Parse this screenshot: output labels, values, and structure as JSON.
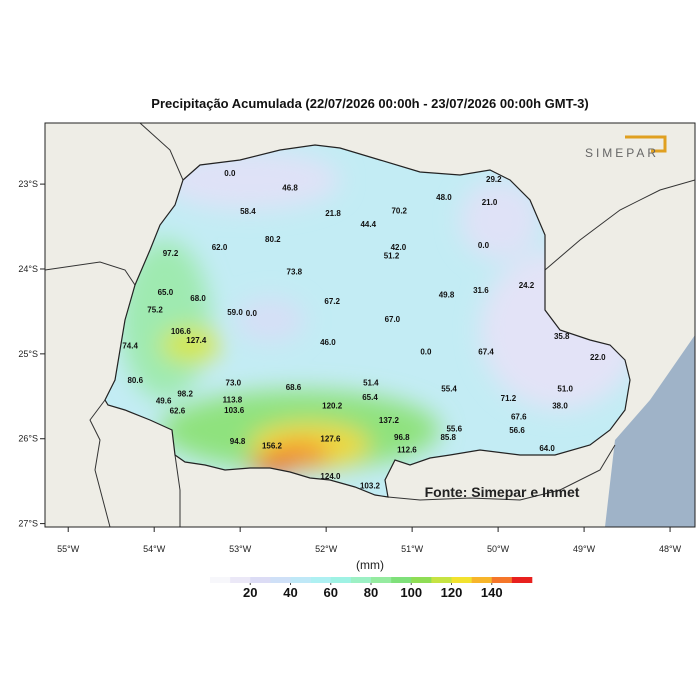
{
  "map": {
    "title": "Precipitação Acumulada (22/07/2026 00:00h - 23/07/2026 00:00h GMT-3)",
    "logo": "SIMEPAR",
    "source": "Fonte: Simepar e Inmet",
    "xlim": [
      -55.27,
      -47.71
    ],
    "ylim": [
      -27.04,
      -22.28
    ],
    "xticks": [
      {
        "value": -55,
        "label": "55°W"
      },
      {
        "value": -54,
        "label": "54°W"
      },
      {
        "value": -53,
        "label": "53°W"
      },
      {
        "value": -52,
        "label": "52°W"
      },
      {
        "value": -51,
        "label": "51°W"
      },
      {
        "value": -50,
        "label": "50°W"
      },
      {
        "value": -49,
        "label": "49°W"
      },
      {
        "value": -48,
        "label": "48°W"
      }
    ],
    "yticks": [
      {
        "value": -23,
        "label": "23°S"
      },
      {
        "value": -24,
        "label": "24°S"
      },
      {
        "value": -25,
        "label": "25°S"
      },
      {
        "value": -26,
        "label": "26°S"
      },
      {
        "value": -27,
        "label": "27°S"
      }
    ],
    "stations": [
      {
        "lon": -53.12,
        "lat": -22.88,
        "label": "0.0"
      },
      {
        "lon": -52.42,
        "lat": -23.05,
        "label": "46.8"
      },
      {
        "lon": -52.91,
        "lat": -23.33,
        "label": "58.4"
      },
      {
        "lon": -51.92,
        "lat": -23.35,
        "label": "21.8"
      },
      {
        "lon": -51.51,
        "lat": -23.48,
        "label": "44.4"
      },
      {
        "lon": -51.15,
        "lat": -23.32,
        "label": "70.2"
      },
      {
        "lon": -50.63,
        "lat": -23.16,
        "label": "48.0"
      },
      {
        "lon": -50.05,
        "lat": -22.95,
        "label": "29.2"
      },
      {
        "lon": -50.1,
        "lat": -23.22,
        "label": "21.0"
      },
      {
        "lon": -53.81,
        "lat": -23.82,
        "label": "97.2"
      },
      {
        "lon": -53.24,
        "lat": -23.75,
        "label": "62.0"
      },
      {
        "lon": -52.62,
        "lat": -23.66,
        "label": "80.2"
      },
      {
        "lon": -51.16,
        "lat": -23.75,
        "label": "42.0"
      },
      {
        "lon": -51.24,
        "lat": -23.85,
        "label": "51.2"
      },
      {
        "lon": -50.17,
        "lat": -23.73,
        "label": "0.0"
      },
      {
        "lon": -52.37,
        "lat": -24.04,
        "label": "73.8"
      },
      {
        "lon": -53.87,
        "lat": -24.28,
        "label": "65.0"
      },
      {
        "lon": -53.49,
        "lat": -24.35,
        "label": "68.0"
      },
      {
        "lon": -53.99,
        "lat": -24.49,
        "label": "75.2"
      },
      {
        "lon": -51.93,
        "lat": -24.39,
        "label": "67.2"
      },
      {
        "lon": -50.6,
        "lat": -24.31,
        "label": "49.8"
      },
      {
        "lon": -50.2,
        "lat": -24.26,
        "label": "31.6"
      },
      {
        "lon": -49.67,
        "lat": -24.2,
        "label": "24.2"
      },
      {
        "lon": -53.06,
        "lat": -24.52,
        "label": "59.0"
      },
      {
        "lon": -52.87,
        "lat": -24.53,
        "label": "0.0"
      },
      {
        "lon": -51.23,
        "lat": -24.6,
        "label": "67.0"
      },
      {
        "lon": -53.69,
        "lat": -24.74,
        "label": "106.6"
      },
      {
        "lon": -53.51,
        "lat": -24.85,
        "label": "127.4"
      },
      {
        "lon": -51.98,
        "lat": -24.87,
        "label": "46.0"
      },
      {
        "lon": -49.26,
        "lat": -24.8,
        "label": "35.8"
      },
      {
        "lon": -54.28,
        "lat": -24.91,
        "label": "74.4"
      },
      {
        "lon": -50.84,
        "lat": -24.98,
        "label": "0.0"
      },
      {
        "lon": -50.14,
        "lat": -24.98,
        "label": "67.4"
      },
      {
        "lon": -48.84,
        "lat": -25.05,
        "label": "22.0"
      },
      {
        "lon": -54.22,
        "lat": -25.32,
        "label": "80.6"
      },
      {
        "lon": -53.08,
        "lat": -25.35,
        "label": "73.0"
      },
      {
        "lon": -52.38,
        "lat": -25.4,
        "label": "68.6"
      },
      {
        "lon": -51.48,
        "lat": -25.35,
        "label": "51.4"
      },
      {
        "lon": -50.57,
        "lat": -25.42,
        "label": "55.4"
      },
      {
        "lon": -49.22,
        "lat": -25.42,
        "label": "51.0"
      },
      {
        "lon": -51.49,
        "lat": -25.52,
        "label": "65.4"
      },
      {
        "lon": -53.64,
        "lat": -25.48,
        "label": "98.2"
      },
      {
        "lon": -53.89,
        "lat": -25.56,
        "label": "49.6"
      },
      {
        "lon": -53.09,
        "lat": -25.55,
        "label": "113.8"
      },
      {
        "lon": -49.88,
        "lat": -25.53,
        "label": "71.2"
      },
      {
        "lon": -53.07,
        "lat": -25.67,
        "label": "103.6"
      },
      {
        "lon": -49.28,
        "lat": -25.62,
        "label": "38.0"
      },
      {
        "lon": -51.93,
        "lat": -25.62,
        "label": "120.2"
      },
      {
        "lon": -53.73,
        "lat": -25.68,
        "label": "62.6"
      },
      {
        "lon": -51.27,
        "lat": -25.79,
        "label": "137.2"
      },
      {
        "lon": -49.76,
        "lat": -25.75,
        "label": "67.6"
      },
      {
        "lon": -49.78,
        "lat": -25.91,
        "label": "56.6"
      },
      {
        "lon": -50.51,
        "lat": -25.89,
        "label": "55.6"
      },
      {
        "lon": -53.03,
        "lat": -26.04,
        "label": "94.8"
      },
      {
        "lon": -52.63,
        "lat": -26.09,
        "label": "156.2"
      },
      {
        "lon": -51.95,
        "lat": -26.01,
        "label": "127.6"
      },
      {
        "lon": -51.12,
        "lat": -25.99,
        "label": "96.8"
      },
      {
        "lon": -50.58,
        "lat": -25.99,
        "label": "85.8"
      },
      {
        "lon": -51.06,
        "lat": -26.14,
        "label": "112.6"
      },
      {
        "lon": -51.95,
        "lat": -26.45,
        "label": "124.0"
      },
      {
        "lon": -51.49,
        "lat": -26.56,
        "label": "103.2"
      },
      {
        "lon": -49.43,
        "lat": -26.12,
        "label": "64.0"
      }
    ],
    "colorbar": {
      "unit": "(mm)",
      "range": [
        0,
        160
      ],
      "ticks": [
        20,
        40,
        60,
        80,
        100,
        120,
        140
      ],
      "colors": [
        "#f7f7fb",
        "#ebe8f7",
        "#dcdcf5",
        "#cfe0f7",
        "#bfe8f7",
        "#aef0f2",
        "#9ff2e4",
        "#9cf0c4",
        "#95eba0",
        "#7fe07a",
        "#8fdd55",
        "#c6e342",
        "#f2e22e",
        "#f7b52a",
        "#f5762a",
        "#e8201e"
      ]
    }
  }
}
